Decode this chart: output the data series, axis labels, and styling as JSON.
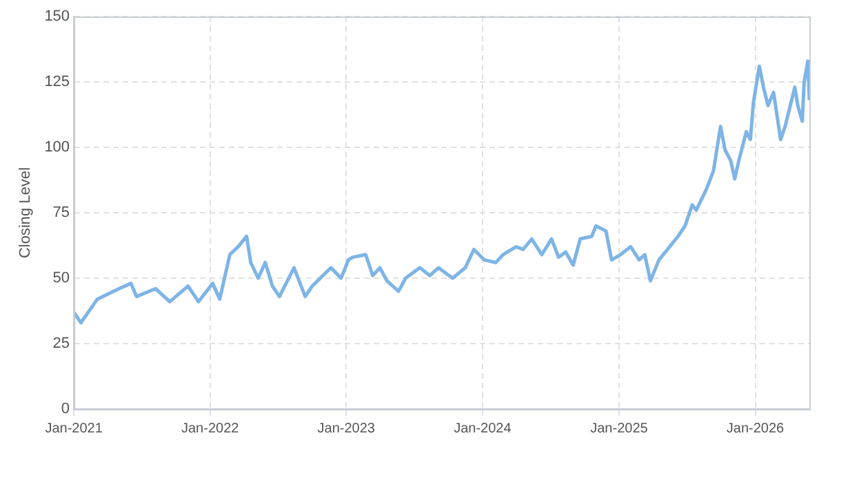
{
  "chart_data": {
    "type": "line",
    "ylabel": "Closing Level",
    "x": [
      "2021-01-01",
      "2021-01-20",
      "2021-03-05",
      "2021-05-02",
      "2021-06-03",
      "2021-06-18",
      "2021-08-08",
      "2021-09-15",
      "2021-11-03",
      "2021-12-01",
      "2022-01-08",
      "2022-01-27",
      "2022-02-23",
      "2022-03-17",
      "2022-04-09",
      "2022-04-20",
      "2022-05-10",
      "2022-05-29",
      "2022-06-17",
      "2022-07-06",
      "2022-08-14",
      "2022-09-13",
      "2022-10-02",
      "2022-11-21",
      "2022-12-18",
      "2023-01-07",
      "2023-01-18",
      "2023-02-22",
      "2023-03-13",
      "2023-04-01",
      "2023-04-20",
      "2023-05-21",
      "2023-06-09",
      "2023-07-17",
      "2023-08-13",
      "2023-09-05",
      "2023-10-13",
      "2023-11-16",
      "2023-12-09",
      "2024-01-06",
      "2024-02-06",
      "2024-02-25",
      "2024-03-31",
      "2024-04-19",
      "2024-05-12",
      "2024-06-08",
      "2024-07-04",
      "2024-07-23",
      "2024-08-11",
      "2024-08-31",
      "2024-09-19",
      "2024-10-20",
      "2024-10-31",
      "2024-11-27",
      "2024-12-12",
      "2025-01-05",
      "2025-02-01",
      "2025-02-24",
      "2025-03-11",
      "2025-03-26",
      "2025-04-18",
      "2025-05-11",
      "2025-06-08",
      "2025-06-27",
      "2025-07-16",
      "2025-07-27",
      "2025-08-23",
      "2025-09-11",
      "2025-09-30",
      "2025-10-12",
      "2025-10-27",
      "2025-11-07",
      "2025-11-18",
      "2025-12-08",
      "2025-12-19",
      "2025-12-27",
      "2026-01-12",
      "2026-01-23",
      "2026-02-04",
      "2026-02-19",
      "2026-03-10",
      "2026-03-22",
      "2026-04-17",
      "2026-04-25",
      "2026-05-07",
      "2026-05-12",
      "2026-05-22",
      "2026-05-26"
    ],
    "series": [
      {
        "color": "#7eb4e6",
        "values": [
          37,
          33,
          42,
          46,
          48,
          43,
          46,
          41,
          47,
          41,
          48,
          42,
          59,
          62,
          66,
          56,
          50,
          56,
          47,
          43,
          54,
          43,
          47,
          54,
          50,
          57,
          58,
          59,
          51,
          54,
          49,
          45,
          50,
          54,
          51,
          54,
          50,
          54,
          61,
          57,
          56,
          59,
          62,
          61,
          65,
          59,
          65,
          58,
          60,
          55,
          65,
          66,
          70,
          68,
          57,
          59,
          62,
          57,
          59,
          49,
          57,
          61,
          66,
          70,
          78,
          76,
          84,
          91,
          108,
          99,
          95,
          88,
          95,
          106,
          103,
          117,
          131,
          123,
          116,
          121,
          103,
          108,
          123,
          116,
          110,
          125,
          133,
          118
        ]
      }
    ],
    "xlim": [
      "2021-01-01",
      "2026-05-26"
    ],
    "xticks": [
      {
        "value": "2021-01-01",
        "label": "Jan-2021"
      },
      {
        "value": "2022-01-01",
        "label": "Jan-2022"
      },
      {
        "value": "2023-01-01",
        "label": "Jan-2023"
      },
      {
        "value": "2024-01-01",
        "label": "Jan-2024"
      },
      {
        "value": "2025-01-01",
        "label": "Jan-2025"
      },
      {
        "value": "2026-01-01",
        "label": "Jan-2026"
      }
    ],
    "ylim": [
      0,
      150
    ],
    "yticks": [
      0,
      25,
      50,
      75,
      100,
      125,
      150
    ],
    "grid": true,
    "legend": false,
    "marker": "none",
    "line_style": "solid"
  }
}
